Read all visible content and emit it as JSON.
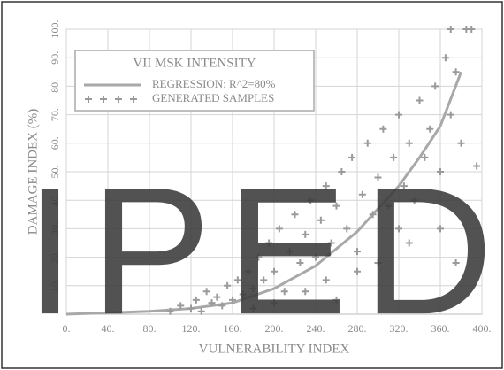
{
  "chart_data": {
    "type": "scatter",
    "xlabel": "VULNERABILITY INDEX",
    "ylabel": "DAMAGE INDEX (%)",
    "legend_title": "VII MSK INTENSITY",
    "watermark": "IPED",
    "xlim": [
      0,
      400
    ],
    "ylim": [
      0,
      100
    ],
    "xticks": [
      {
        "value": 0,
        "label": "0."
      },
      {
        "value": 40,
        "label": "40."
      },
      {
        "value": 80,
        "label": "80."
      },
      {
        "value": 120,
        "label": "120."
      },
      {
        "value": 160,
        "label": "160."
      },
      {
        "value": 200,
        "label": "200."
      },
      {
        "value": 240,
        "label": "240."
      },
      {
        "value": 280,
        "label": "280."
      },
      {
        "value": 320,
        "label": "320."
      },
      {
        "value": 360,
        "label": "360."
      },
      {
        "value": 400,
        "label": "400."
      }
    ],
    "yticks": [
      {
        "value": 10,
        "label": "10."
      },
      {
        "value": 20,
        "label": "20."
      },
      {
        "value": 30,
        "label": "30."
      },
      {
        "value": 40,
        "label": "40."
      },
      {
        "value": 50,
        "label": "50."
      },
      {
        "value": 60,
        "label": "60."
      },
      {
        "value": 70,
        "label": "70."
      },
      {
        "value": 80,
        "label": "80."
      },
      {
        "value": 90,
        "label": "90."
      },
      {
        "value": 100,
        "label": "100."
      }
    ],
    "grid": true,
    "series": [
      {
        "name": "REGRESSION: R^2=80%",
        "type": "line",
        "color": "#a8a8a8",
        "x": [
          0,
          80,
          120,
          160,
          200,
          240,
          280,
          320,
          340,
          360,
          380
        ],
        "values": [
          0,
          1,
          2,
          4,
          9,
          17,
          29,
          45,
          55,
          66,
          85
        ]
      },
      {
        "name": "GENERATED SAMPLES",
        "type": "points",
        "color": "#9a9a9a",
        "x": [
          100,
          110,
          120,
          125,
          130,
          135,
          140,
          145,
          150,
          155,
          160,
          165,
          170,
          175,
          180,
          185,
          190,
          195,
          200,
          205,
          210,
          215,
          220,
          225,
          230,
          235,
          240,
          245,
          250,
          255,
          260,
          265,
          270,
          275,
          280,
          285,
          290,
          295,
          300,
          305,
          310,
          315,
          320,
          325,
          330,
          335,
          340,
          345,
          350,
          355,
          360,
          365,
          370,
          375,
          380,
          385,
          390,
          370,
          395,
          360,
          300,
          250,
          200,
          180,
          230,
          280,
          330,
          375,
          260,
          320
        ],
        "values": [
          1,
          3,
          2,
          5,
          1,
          8,
          4,
          6,
          3,
          10,
          5,
          12,
          7,
          15,
          9,
          20,
          12,
          25,
          15,
          30,
          8,
          22,
          35,
          18,
          28,
          40,
          20,
          33,
          45,
          25,
          38,
          50,
          30,
          55,
          22,
          42,
          60,
          35,
          48,
          65,
          38,
          55,
          70,
          45,
          60,
          40,
          75,
          55,
          65,
          80,
          50,
          90,
          70,
          85,
          60,
          100,
          100,
          100,
          52,
          30,
          18,
          12,
          4,
          2,
          8,
          15,
          25,
          18,
          5,
          30
        ]
      }
    ]
  }
}
